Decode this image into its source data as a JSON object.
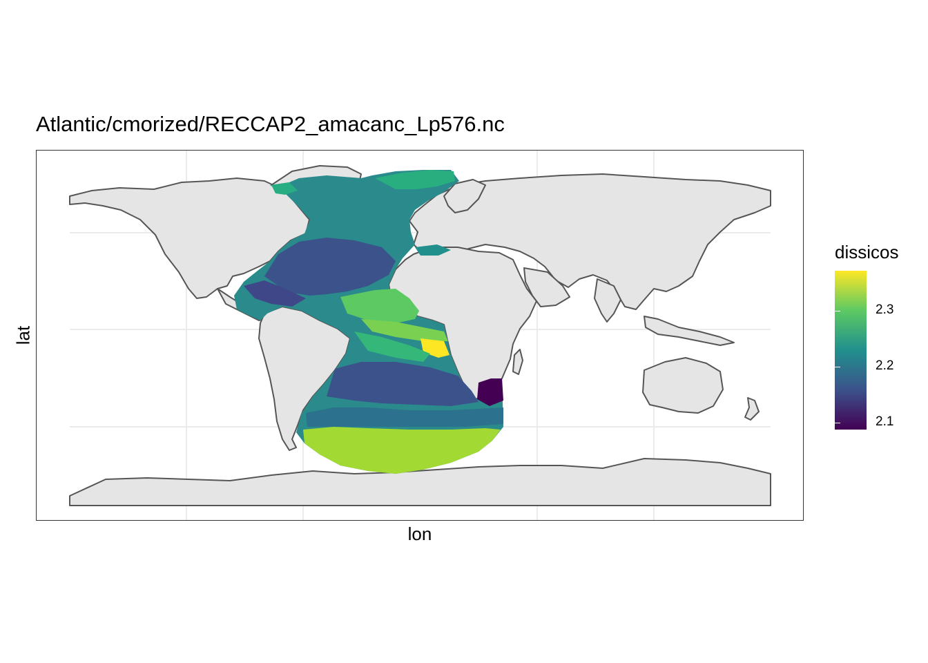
{
  "chart_data": {
    "type": "heatmap",
    "title": "Atlantic/cmorized/RECCAP2_amacanc_Lp576.nc",
    "xlabel": "lon",
    "ylabel": "lat",
    "legend": {
      "title": "dissicos",
      "ticks": [
        "2.1",
        "2.2",
        "2.3"
      ],
      "range": [
        2.08,
        2.38
      ],
      "colors": [
        "#440154",
        "#3b528b",
        "#21908d",
        "#5dc963",
        "#fde725"
      ],
      "placement": "right"
    },
    "grid": true,
    "land_color": "#e5e5e5",
    "coast_color": "#555555"
  }
}
